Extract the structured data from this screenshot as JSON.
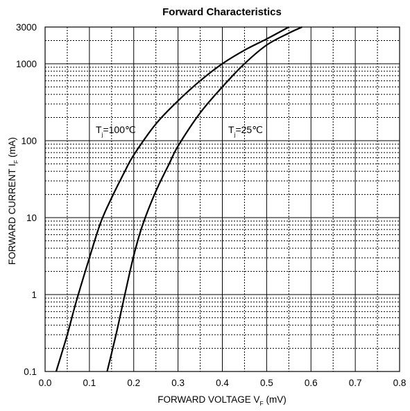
{
  "chart_data": {
    "type": "line",
    "title": "Forward Characteristics",
    "xlabel": {
      "main": "FORWARD VOLTAGE V",
      "sub": "F",
      "unit": "(mV)"
    },
    "ylabel": {
      "main": "FORWARD CURRENT I",
      "sub": "F",
      "unit": "(mA)"
    },
    "xlim": [
      0.0,
      0.8
    ],
    "ylim": [
      0.1,
      3000
    ],
    "yscale": "log",
    "grid": true,
    "x_ticks": [
      0.0,
      0.1,
      0.2,
      0.3,
      0.4,
      0.5,
      0.6,
      0.7,
      0.8
    ],
    "x_tick_labels": [
      "0.0",
      "0.1",
      "0.2",
      "0.3",
      "0.4",
      "0.5",
      "0.6",
      "0.7",
      "0.8"
    ],
    "y_ticks": [
      0.1,
      1,
      10,
      100,
      1000,
      3000
    ],
    "y_tick_labels": [
      "0.1",
      "1",
      "10",
      "100",
      "1000",
      "3000"
    ],
    "series": [
      {
        "name": "Tj=100℃",
        "label": {
          "main": "T",
          "sub": "j",
          "rest": "=100℃"
        },
        "x": [
          0.025,
          0.05,
          0.07,
          0.1,
          0.125,
          0.15,
          0.18,
          0.2,
          0.25,
          0.3,
          0.35,
          0.4,
          0.45,
          0.5,
          0.55
        ],
        "y": [
          0.1,
          0.3,
          0.8,
          3,
          8.5,
          18,
          40,
          65,
          165,
          330,
          600,
          1000,
          1500,
          2100,
          3000
        ]
      },
      {
        "name": "Tj=25℃",
        "label": {
          "main": "T",
          "sub": "j",
          "rest": "=25℃"
        },
        "x": [
          0.14,
          0.16,
          0.18,
          0.2,
          0.22,
          0.25,
          0.28,
          0.3,
          0.35,
          0.4,
          0.45,
          0.5,
          0.55,
          0.58
        ],
        "y": [
          0.1,
          0.3,
          1,
          3.2,
          8,
          22,
          50,
          85,
          230,
          500,
          1000,
          1750,
          2500,
          3000
        ]
      }
    ]
  }
}
